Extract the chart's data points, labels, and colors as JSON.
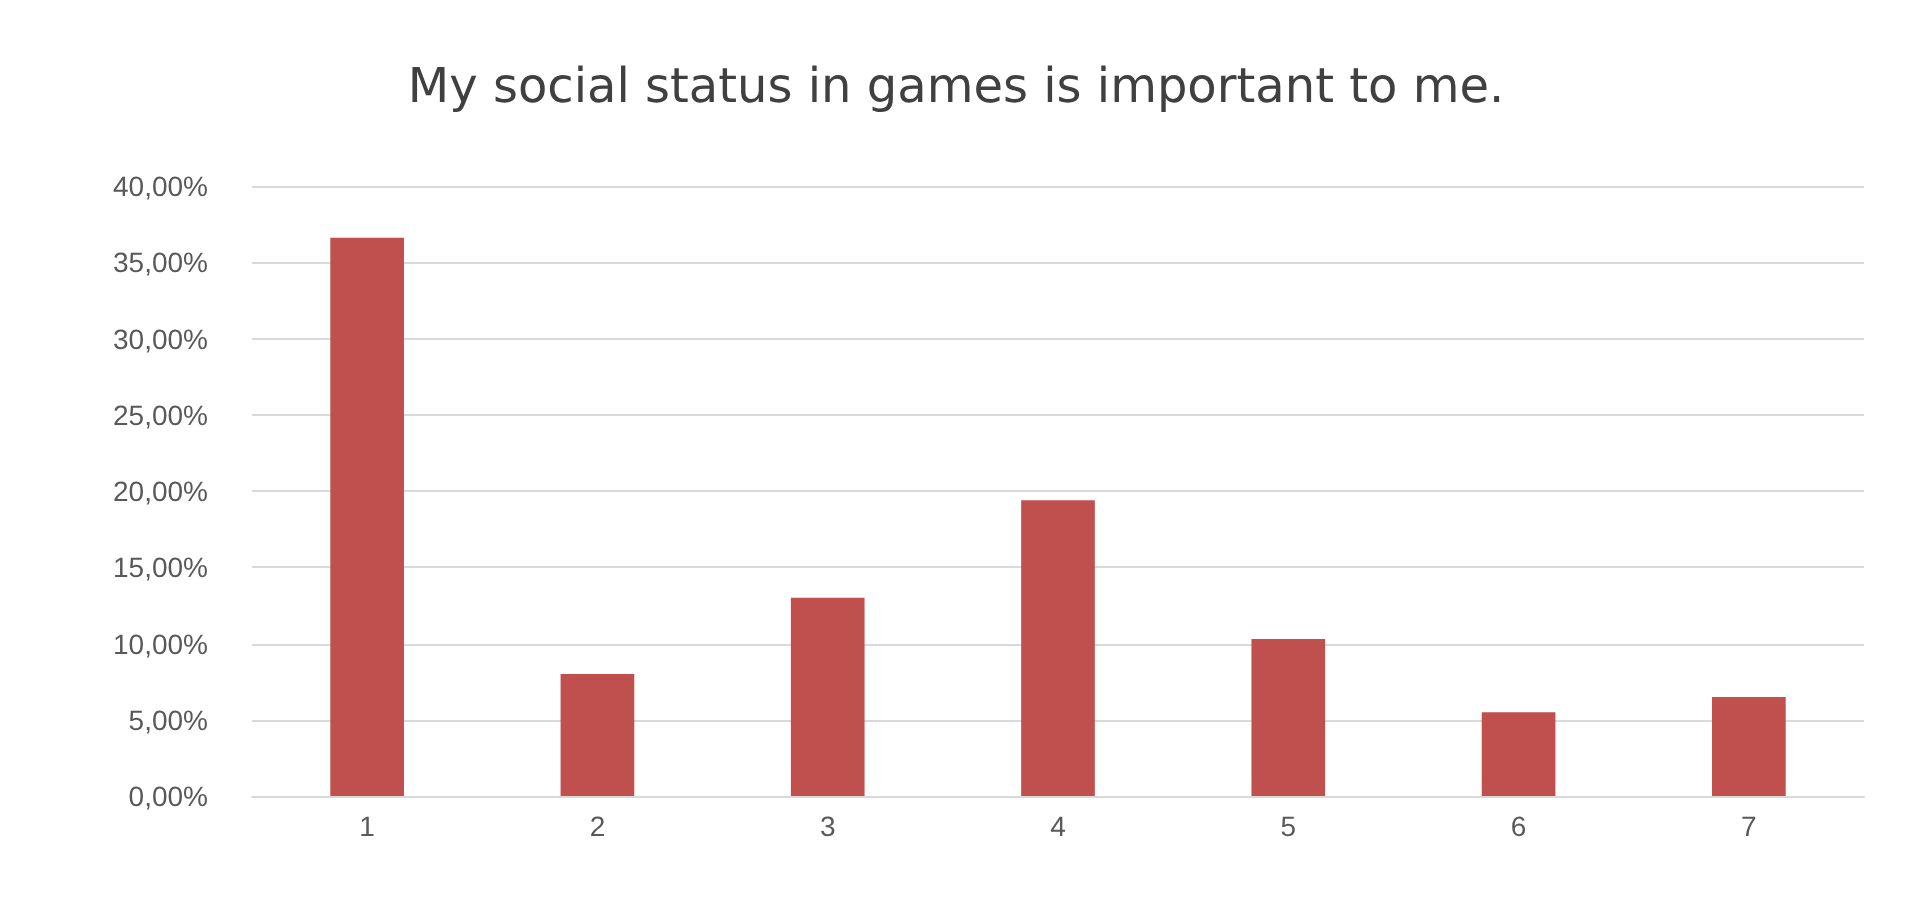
{
  "chart_data": {
    "type": "bar",
    "title": "My social status in games is important to me.",
    "categories": [
      "1",
      "2",
      "3",
      "4",
      "5",
      "6",
      "7"
    ],
    "values": [
      36.6,
      8.0,
      13.0,
      19.4,
      10.3,
      5.5,
      6.5
    ],
    "color": "#c0504d",
    "ylim": [
      0,
      40
    ],
    "yticks": [
      {
        "value": 0,
        "label": "0,00%"
      },
      {
        "value": 5,
        "label": "5,00%"
      },
      {
        "value": 10,
        "label": "10,00%"
      },
      {
        "value": 15,
        "label": "15,00%"
      },
      {
        "value": 20,
        "label": "20,00%"
      },
      {
        "value": 25,
        "label": "25,00%"
      },
      {
        "value": 30,
        "label": "30,00%"
      },
      {
        "value": 35,
        "label": "35,00%"
      },
      {
        "value": 40,
        "label": "40,00%"
      }
    ],
    "grid": "y"
  }
}
